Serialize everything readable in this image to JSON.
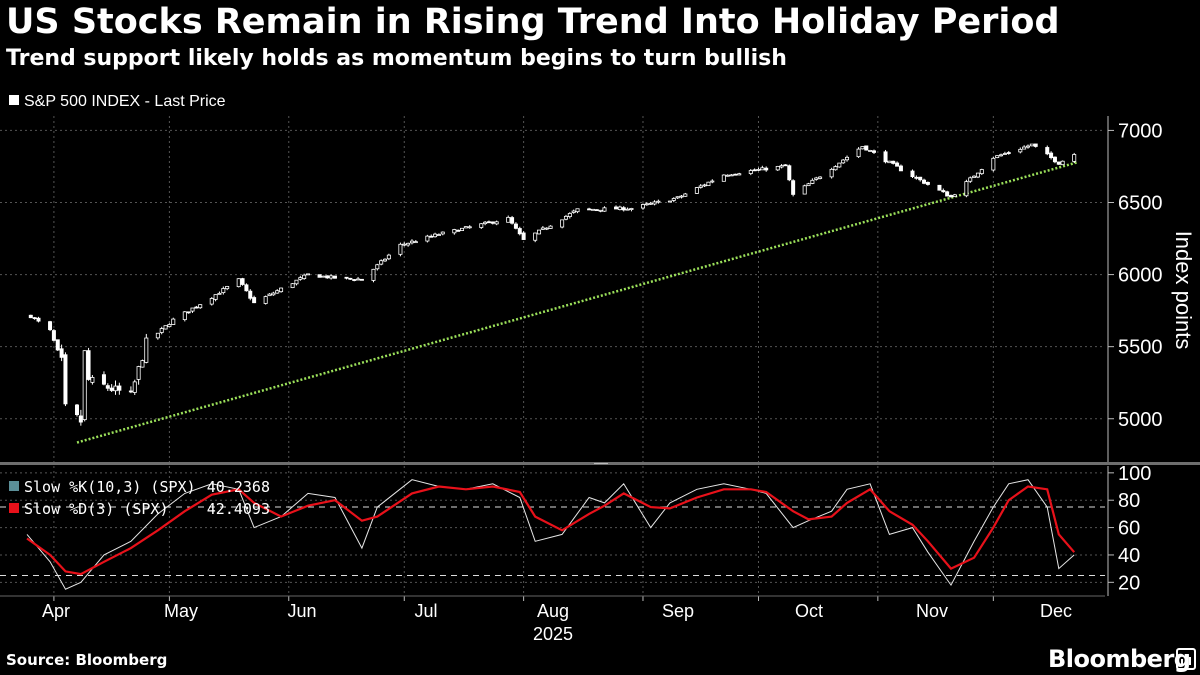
{
  "header": {
    "title": "US Stocks Remain in Rising Trend Into Holiday Period",
    "subtitle": "Trend support likely holds as momentum begins to turn bullish"
  },
  "footer": {
    "source": "Source: Bloomberg",
    "brand": "Bloomberg"
  },
  "colors": {
    "background": "#000000",
    "candle": "#ffffff",
    "trendline": "#9be05a",
    "slow_k": "#e6e6e6",
    "slow_d": "#e8111a",
    "k_legend_swatch": "#5b8f98",
    "grid": "#555555"
  },
  "chart_data": [
    {
      "type": "candlestick",
      "legend": [
        {
          "label": "S&P 500 INDEX - Last Price"
        }
      ],
      "ylabel": "Index points",
      "ylim": [
        4700,
        7100
      ],
      "yticks": [
        "5000",
        "5500",
        "6000",
        "6500",
        "7000"
      ],
      "xticks": [
        "Apr",
        "May",
        "Jun",
        "Jul",
        "Aug",
        "Sep",
        "Oct",
        "Nov",
        "Dec"
      ],
      "x_year_label": "2025",
      "grid": true,
      "trendline": {
        "from": [
          "2025-04-07",
          4835
        ],
        "to": [
          "2025-12-23",
          6780
        ]
      },
      "close_path": [
        [
          "2025-03-26",
          5712
        ],
        [
          "2025-03-31",
          5611
        ],
        [
          "2025-04-03",
          5396
        ],
        [
          "2025-04-04",
          5074
        ],
        [
          "2025-04-08",
          4982
        ],
        [
          "2025-04-09",
          5456
        ],
        [
          "2025-04-10",
          5268
        ],
        [
          "2025-04-21",
          5158
        ],
        [
          "2025-04-25",
          5525
        ],
        [
          "2025-05-02",
          5686
        ],
        [
          "2025-05-12",
          5844
        ],
        [
          "2025-05-19",
          5963
        ],
        [
          "2025-05-23",
          5802
        ],
        [
          "2025-06-06",
          6000
        ],
        [
          "2025-06-13",
          5977
        ],
        [
          "2025-06-20",
          5967
        ],
        [
          "2025-06-30",
          6205
        ],
        [
          "2025-07-10",
          6280
        ],
        [
          "2025-07-28",
          6390
        ],
        [
          "2025-08-01",
          6238
        ],
        [
          "2025-08-15",
          6450
        ],
        [
          "2025-08-29",
          6460
        ],
        [
          "2025-09-10",
          6532
        ],
        [
          "2025-09-22",
          6693
        ],
        [
          "2025-10-08",
          6753
        ],
        [
          "2025-10-10",
          6552
        ],
        [
          "2025-10-28",
          6890
        ],
        [
          "2025-11-07",
          6728
        ],
        [
          "2025-11-20",
          6538
        ],
        [
          "2025-12-01",
          6812
        ],
        [
          "2025-12-11",
          6901
        ],
        [
          "2025-12-18",
          6774
        ],
        [
          "2025-12-22",
          6835
        ]
      ]
    },
    {
      "type": "line",
      "series": [
        {
          "name": "Slow %K(10,3) (SPX)",
          "last_value": "40.2368"
        },
        {
          "name": "Slow %D(3) (SPX)",
          "last_value": "42.4093"
        }
      ],
      "ylim": [
        10,
        105
      ],
      "yticks": [
        "20",
        "40",
        "60",
        "80",
        "100"
      ],
      "reference_lines": [
        25,
        75
      ],
      "slow_k": [
        [
          "2025-03-25",
          55
        ],
        [
          "2025-03-31",
          35
        ],
        [
          "2025-04-04",
          15
        ],
        [
          "2025-04-08",
          20
        ],
        [
          "2025-04-14",
          40
        ],
        [
          "2025-04-21",
          50
        ],
        [
          "2025-04-28",
          70
        ],
        [
          "2025-05-05",
          85
        ],
        [
          "2025-05-12",
          92
        ],
        [
          "2025-05-19",
          88
        ],
        [
          "2025-05-23",
          60
        ],
        [
          "2025-05-30",
          68
        ],
        [
          "2025-06-06",
          85
        ],
        [
          "2025-06-13",
          82
        ],
        [
          "2025-06-20",
          45
        ],
        [
          "2025-06-24",
          75
        ],
        [
          "2025-07-03",
          95
        ],
        [
          "2025-07-10",
          90
        ],
        [
          "2025-07-17",
          88
        ],
        [
          "2025-07-24",
          92
        ],
        [
          "2025-07-31",
          82
        ],
        [
          "2025-08-04",
          50
        ],
        [
          "2025-08-11",
          55
        ],
        [
          "2025-08-18",
          82
        ],
        [
          "2025-08-22",
          78
        ],
        [
          "2025-08-27",
          92
        ],
        [
          "2025-09-03",
          60
        ],
        [
          "2025-09-08",
          78
        ],
        [
          "2025-09-15",
          88
        ],
        [
          "2025-09-22",
          92
        ],
        [
          "2025-09-29",
          88
        ],
        [
          "2025-10-03",
          85
        ],
        [
          "2025-10-10",
          60
        ],
        [
          "2025-10-14",
          65
        ],
        [
          "2025-10-20",
          72
        ],
        [
          "2025-10-24",
          88
        ],
        [
          "2025-10-30",
          92
        ],
        [
          "2025-11-04",
          55
        ],
        [
          "2025-11-10",
          60
        ],
        [
          "2025-11-14",
          42
        ],
        [
          "2025-11-20",
          18
        ],
        [
          "2025-11-26",
          50
        ],
        [
          "2025-12-01",
          75
        ],
        [
          "2025-12-05",
          92
        ],
        [
          "2025-12-10",
          95
        ],
        [
          "2025-12-15",
          75
        ],
        [
          "2025-12-18",
          30
        ],
        [
          "2025-12-22",
          40
        ]
      ],
      "slow_d": [
        [
          "2025-03-25",
          52
        ],
        [
          "2025-03-31",
          40
        ],
        [
          "2025-04-04",
          28
        ],
        [
          "2025-04-08",
          26
        ],
        [
          "2025-04-14",
          35
        ],
        [
          "2025-04-21",
          45
        ],
        [
          "2025-04-28",
          58
        ],
        [
          "2025-05-05",
          72
        ],
        [
          "2025-05-12",
          84
        ],
        [
          "2025-05-19",
          88
        ],
        [
          "2025-05-23",
          78
        ],
        [
          "2025-05-30",
          68
        ],
        [
          "2025-06-06",
          76
        ],
        [
          "2025-06-13",
          80
        ],
        [
          "2025-06-20",
          65
        ],
        [
          "2025-06-24",
          68
        ],
        [
          "2025-07-03",
          85
        ],
        [
          "2025-07-10",
          90
        ],
        [
          "2025-07-17",
          88
        ],
        [
          "2025-07-24",
          90
        ],
        [
          "2025-07-31",
          86
        ],
        [
          "2025-08-04",
          68
        ],
        [
          "2025-08-11",
          58
        ],
        [
          "2025-08-18",
          70
        ],
        [
          "2025-08-22",
          76
        ],
        [
          "2025-08-27",
          85
        ],
        [
          "2025-09-03",
          75
        ],
        [
          "2025-09-08",
          74
        ],
        [
          "2025-09-15",
          82
        ],
        [
          "2025-09-22",
          88
        ],
        [
          "2025-09-29",
          88
        ],
        [
          "2025-10-03",
          86
        ],
        [
          "2025-10-10",
          72
        ],
        [
          "2025-10-14",
          66
        ],
        [
          "2025-10-20",
          68
        ],
        [
          "2025-10-24",
          78
        ],
        [
          "2025-10-30",
          88
        ],
        [
          "2025-11-04",
          72
        ],
        [
          "2025-11-10",
          62
        ],
        [
          "2025-11-14",
          50
        ],
        [
          "2025-11-20",
          30
        ],
        [
          "2025-11-26",
          38
        ],
        [
          "2025-12-01",
          60
        ],
        [
          "2025-12-05",
          80
        ],
        [
          "2025-12-10",
          90
        ],
        [
          "2025-12-15",
          88
        ],
        [
          "2025-12-18",
          55
        ],
        [
          "2025-12-22",
          42
        ]
      ]
    }
  ]
}
